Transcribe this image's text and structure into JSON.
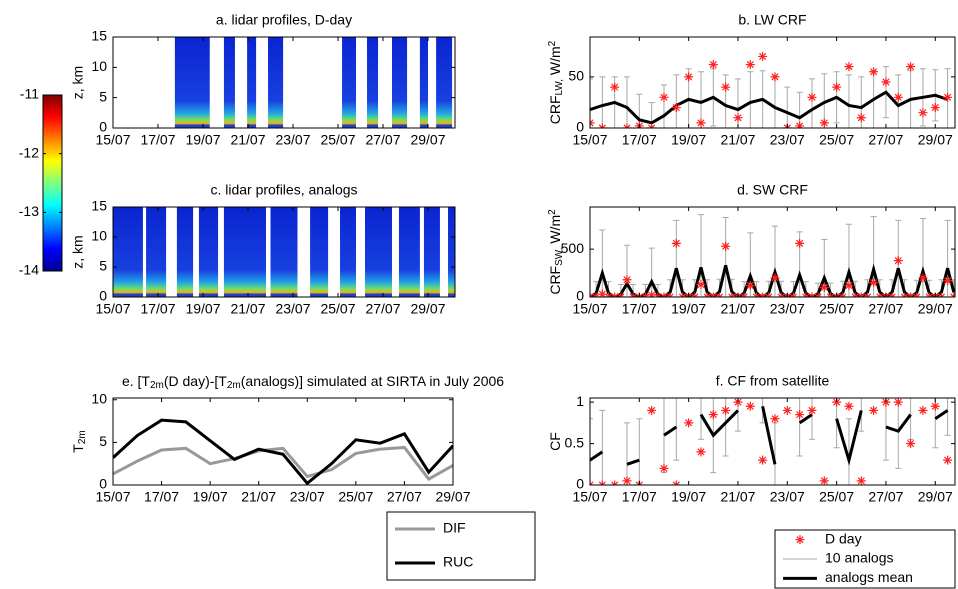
{
  "chart_data": [
    {
      "type": "heatmap",
      "title": "a. lidar profiles, D-day",
      "ylabel": "z, km",
      "xlim": [
        15,
        30.2
      ],
      "ylim": [
        0,
        15
      ],
      "yticks": [
        0,
        5,
        10,
        15
      ],
      "xticks": [
        {
          "value": 15,
          "label": "15/07"
        },
        {
          "value": 17,
          "label": "17/07"
        },
        {
          "value": 19,
          "label": "19/07"
        },
        {
          "value": 21,
          "label": "21/07"
        },
        {
          "value": 23,
          "label": "23/07"
        },
        {
          "value": 25,
          "label": "25/07"
        },
        {
          "value": 27,
          "label": "27/07"
        },
        {
          "value": 29,
          "label": "29/07"
        }
      ],
      "segments": [
        [
          17.75,
          19.3
        ],
        [
          19.93,
          20.42
        ],
        [
          20.96,
          21.36
        ],
        [
          21.89,
          22.56
        ],
        [
          25.18,
          25.8
        ],
        [
          26.29,
          26.78
        ],
        [
          27.4,
          28.07
        ],
        [
          28.64,
          29.0
        ],
        [
          29.36,
          30.07
        ]
      ],
      "colorbar": {
        "lim": [
          -14,
          -11
        ],
        "ticks": [
          -11,
          -12,
          -13,
          -14
        ]
      }
    },
    {
      "type": "errorbar_line",
      "title": "b. LW CRF",
      "ylabel": [
        "CRF",
        {
          "text": "LW,",
          "script": "sub"
        },
        " W/m",
        {
          "text": "2",
          "script": "super"
        }
      ],
      "xlim": [
        15,
        29.8
      ],
      "ylim": [
        0,
        89
      ],
      "yticks": [
        0,
        50
      ],
      "xticks": [
        {
          "value": 15,
          "label": "15/07"
        },
        {
          "value": 17,
          "label": "17/07"
        },
        {
          "value": 19,
          "label": "19/07"
        },
        {
          "value": 21,
          "label": "21/07"
        },
        {
          "value": 23,
          "label": "23/07"
        },
        {
          "value": 25,
          "label": "25/07"
        },
        {
          "value": 27,
          "label": "27/07"
        },
        {
          "value": 29,
          "label": "29/07"
        }
      ],
      "x": [
        15,
        15.5,
        16,
        16.5,
        17,
        17.5,
        18,
        18.5,
        19,
        19.5,
        20,
        20.5,
        21,
        21.5,
        22,
        22.5,
        23,
        23.5,
        24,
        24.5,
        25,
        25.5,
        26,
        26.5,
        27,
        27.5,
        28,
        28.5,
        29,
        29.5
      ],
      "series": [
        {
          "color": "#ff2020",
          "values": [
            5,
            0,
            40,
            0,
            2,
            0,
            30,
            20,
            50,
            5,
            62,
            40,
            10,
            62,
            70,
            50,
            0,
            2,
            30,
            5,
            40,
            60,
            10,
            55,
            45,
            30,
            60,
            15,
            20,
            30
          ]
        },
        {
          "color": "#a8a8a8",
          "errors": [
            30,
            28,
            25,
            30,
            25,
            20,
            30,
            30,
            30,
            30,
            28,
            30,
            30,
            30,
            28,
            30,
            25,
            25,
            30,
            28,
            25,
            30,
            30,
            28,
            25,
            30,
            28,
            28,
            25,
            30
          ]
        },
        {
          "color": "#000000",
          "values": [
            18,
            22,
            25,
            20,
            8,
            5,
            12,
            22,
            28,
            25,
            30,
            22,
            18,
            25,
            28,
            20,
            15,
            10,
            18,
            25,
            30,
            22,
            20,
            28,
            35,
            22,
            28,
            30,
            32,
            28
          ]
        }
      ]
    },
    {
      "type": "heatmap",
      "title": "c. lidar profiles, analogs",
      "ylabel": "z, km",
      "xlim": [
        15,
        30.2
      ],
      "ylim": [
        0,
        15
      ],
      "yticks": [
        0,
        5,
        10,
        15
      ],
      "xticks": [
        {
          "value": 15,
          "label": "15/07"
        },
        {
          "value": 17,
          "label": "17/07"
        },
        {
          "value": 19,
          "label": "19/07"
        },
        {
          "value": 21,
          "label": "21/07"
        },
        {
          "value": 23,
          "label": "23/07"
        },
        {
          "value": 25,
          "label": "25/07"
        },
        {
          "value": 27,
          "label": "27/07"
        },
        {
          "value": 29,
          "label": "29/07"
        }
      ],
      "segments": [
        [
          15,
          16.33
        ],
        [
          16.47,
          17.36
        ],
        [
          17.84,
          18.56
        ],
        [
          18.82,
          19.67
        ],
        [
          19.93,
          21.8
        ],
        [
          22,
          23.2
        ],
        [
          23.76,
          24.56
        ],
        [
          25.09,
          25.8
        ],
        [
          26.2,
          27.4
        ],
        [
          27.71,
          28.64
        ],
        [
          28.82,
          29.53
        ],
        [
          29.89,
          30.2
        ]
      ]
    },
    {
      "type": "errorbar_line",
      "title": "d. SW CRF",
      "ylabel": [
        "CRF",
        {
          "text": "SW,",
          "script": "sub"
        },
        " W/m",
        {
          "text": "2",
          "script": "super"
        }
      ],
      "xlim": [
        15,
        29.8
      ],
      "ylim": [
        0,
        940
      ],
      "yticks": [
        0,
        500
      ],
      "xticks": [
        {
          "value": 15,
          "label": "15/07"
        },
        {
          "value": 17,
          "label": "17/07"
        },
        {
          "value": 19,
          "label": "19/07"
        },
        {
          "value": 21,
          "label": "21/07"
        },
        {
          "value": 23,
          "label": "23/07"
        },
        {
          "value": 25,
          "label": "25/07"
        },
        {
          "value": 27,
          "label": "27/07"
        },
        {
          "value": 29,
          "label": "29/07"
        }
      ],
      "x": [
        15,
        15.25,
        15.5,
        15.75,
        16,
        16.25,
        16.5,
        16.75,
        17,
        17.25,
        17.5,
        17.75,
        18,
        18.25,
        18.5,
        18.75,
        19,
        19.25,
        19.5,
        19.75,
        20,
        20.25,
        20.5,
        20.75,
        21,
        21.25,
        21.5,
        21.75,
        22,
        22.25,
        22.5,
        22.75,
        23,
        23.25,
        23.5,
        23.75,
        24,
        24.25,
        24.5,
        24.75,
        25,
        25.25,
        25.5,
        25.75,
        26,
        26.25,
        26.5,
        26.75,
        27,
        27.25,
        27.5,
        27.75,
        28,
        28.25,
        28.5,
        28.75,
        29,
        29.25,
        29.5,
        29.75
      ],
      "series": [
        {
          "color": "#ff2020",
          "values": [
            0,
            0,
            30,
            0,
            0,
            0,
            180,
            0,
            0,
            0,
            20,
            0,
            0,
            0,
            560,
            0,
            0,
            0,
            130,
            0,
            0,
            0,
            530,
            0,
            0,
            0,
            120,
            0,
            0,
            0,
            200,
            0,
            0,
            0,
            560,
            0,
            0,
            0,
            100,
            0,
            0,
            0,
            120,
            0,
            0,
            0,
            150,
            0,
            0,
            0,
            380,
            0,
            0,
            0,
            200,
            0,
            0,
            0,
            170,
            0
          ]
        },
        {
          "color": "#a8a8a8",
          "errors": [
            0,
            120,
            450,
            120,
            0,
            100,
            400,
            100,
            0,
            100,
            350,
            100,
            0,
            130,
            500,
            130,
            0,
            130,
            550,
            130,
            0,
            130,
            500,
            130,
            0,
            120,
            450,
            120,
            0,
            120,
            480,
            120,
            0,
            120,
            450,
            120,
            0,
            110,
            400,
            110,
            0,
            120,
            500,
            120,
            0,
            130,
            550,
            130,
            0,
            130,
            500,
            130,
            0,
            130,
            550,
            130,
            0,
            130,
            500,
            130
          ]
        },
        {
          "color": "#000000",
          "values": [
            0,
            40,
            250,
            40,
            0,
            30,
            140,
            30,
            0,
            30,
            160,
            30,
            0,
            50,
            300,
            50,
            0,
            50,
            310,
            50,
            0,
            55,
            330,
            55,
            0,
            40,
            220,
            40,
            0,
            45,
            260,
            45,
            0,
            40,
            230,
            40,
            0,
            35,
            200,
            35,
            0,
            45,
            260,
            45,
            0,
            50,
            290,
            50,
            0,
            50,
            300,
            50,
            0,
            45,
            270,
            45,
            0,
            50,
            300,
            50
          ]
        }
      ]
    },
    {
      "type": "line",
      "title": [
        "e. [T",
        {
          "text": "2m",
          "script": "sub"
        },
        "(D day)-[T",
        {
          "text": "2m",
          "script": "sub"
        },
        "(analogs)] simulated at SIRTA in July 2006"
      ],
      "ylabel": [
        "T",
        {
          "text": "2m",
          "script": "sub"
        }
      ],
      "xlim": [
        15,
        29
      ],
      "ylim": [
        0,
        10.2
      ],
      "yticks": [
        0,
        5,
        10
      ],
      "xticks": [
        {
          "value": 15,
          "label": "15/07"
        },
        {
          "value": 17,
          "label": "17/07"
        },
        {
          "value": 19,
          "label": "19/07"
        },
        {
          "value": 21,
          "label": "21/07"
        },
        {
          "value": 23,
          "label": "23/07"
        },
        {
          "value": 25,
          "label": "25/07"
        },
        {
          "value": 27,
          "label": "27/07"
        },
        {
          "value": 29,
          "label": "29/07"
        }
      ],
      "x": [
        15,
        16,
        17,
        18,
        19,
        20,
        21,
        22,
        23,
        24,
        25,
        26,
        27,
        28,
        29
      ],
      "legend": "below",
      "series": [
        {
          "name": "DIF",
          "color": "#999999",
          "values": [
            1.3,
            2.8,
            4.1,
            4.3,
            2.5,
            3.1,
            4,
            4.3,
            1,
            1.8,
            3.7,
            4.2,
            4.4,
            0.7,
            2.3
          ]
        },
        {
          "name": "RUC",
          "color": "#000000",
          "values": [
            3.2,
            5.8,
            7.6,
            7.4,
            5.2,
            3,
            4.2,
            3.6,
            0.2,
            2.5,
            5.3,
            4.9,
            6,
            1.5,
            4.6
          ]
        }
      ]
    },
    {
      "type": "errorbar_line",
      "title": "f. CF from satellite",
      "ylabel": [
        "CF"
      ],
      "xlim": [
        15,
        29.8
      ],
      "ylim": [
        0,
        1.05
      ],
      "yticks": [
        0,
        0.5,
        1
      ],
      "xticks": [
        {
          "value": 15,
          "label": "15/07"
        },
        {
          "value": 17,
          "label": "17/07"
        },
        {
          "value": 19,
          "label": "19/07"
        },
        {
          "value": 21,
          "label": "21/07"
        },
        {
          "value": 23,
          "label": "23/07"
        },
        {
          "value": 25,
          "label": "25/07"
        },
        {
          "value": 27,
          "label": "27/07"
        },
        {
          "value": 29,
          "label": "29/07"
        }
      ],
      "x": [
        15,
        15.5,
        16,
        16.5,
        17,
        17.5,
        18,
        18.5,
        19,
        19.5,
        20,
        20.5,
        21,
        21.5,
        22,
        22.5,
        23,
        23.5,
        24,
        24.5,
        25,
        25.5,
        26,
        26.5,
        27,
        27.5,
        28,
        28.5,
        29,
        29.5
      ],
      "legend": "below",
      "series": [
        {
          "name": "D day",
          "color": "#ff2020",
          "values": [
            0,
            0,
            0,
            0.05,
            0,
            0.9,
            0.2,
            0,
            0.75,
            0.4,
            0.85,
            0.9,
            1,
            0.95,
            0.3,
            0.8,
            0.9,
            0.85,
            0.9,
            0.05,
            1,
            0.95,
            0.05,
            0.9,
            1,
            1,
            0.5,
            0.9,
            0.95,
            0.3
          ]
        },
        {
          "name": "10 analogs",
          "color": "#a8a8a8",
          "errors": [
            0.5,
            0.5,
            null,
            0.5,
            0.5,
            null,
            0.45,
            0.4,
            null,
            0.3,
            0.45,
            0.4,
            0.25,
            null,
            0.2,
            0.5,
            null,
            0.4,
            0.3,
            null,
            0.35,
            0.5,
            0.25,
            null,
            0.4,
            0.45,
            0.3,
            null,
            0.35,
            0.3
          ]
        },
        {
          "name": "analogs mean",
          "color": "#000000",
          "values": [
            0.3,
            0.4,
            null,
            0.25,
            0.3,
            null,
            0.6,
            0.7,
            null,
            0.85,
            0.6,
            0.75,
            0.9,
            null,
            0.95,
            0.25,
            null,
            0.75,
            0.85,
            null,
            0.8,
            0.3,
            0.9,
            null,
            0.7,
            0.65,
            0.85,
            null,
            0.8,
            0.9
          ]
        }
      ]
    }
  ]
}
